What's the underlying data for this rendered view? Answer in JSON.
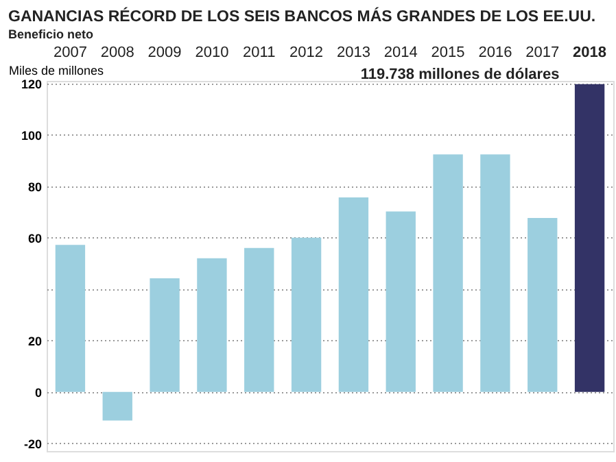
{
  "chart_data": {
    "type": "bar",
    "title": "GANANCIAS RÉCORD DE LOS SEIS BANCOS MÁS GRANDES DE LOS EE.UU.",
    "subtitle": "Beneficio neto",
    "ylabel": "Miles de millones",
    "categories": [
      "2007",
      "2008",
      "2009",
      "2010",
      "2011",
      "2012",
      "2013",
      "2014",
      "2015",
      "2016",
      "2017",
      "2018"
    ],
    "values": [
      57.2,
      -11.1,
      44.2,
      52,
      56,
      60,
      75.7,
      70.2,
      92.4,
      92.4,
      67.7,
      119.738
    ],
    "colors": [
      "#9ccfdf",
      "#9ccfdf",
      "#9ccfdf",
      "#9ccfdf",
      "#9ccfdf",
      "#9ccfdf",
      "#9ccfdf",
      "#9ccfdf",
      "#9ccfdf",
      "#9ccfdf",
      "#9ccfdf",
      "#333366"
    ],
    "ylim": [
      -23,
      121
    ],
    "yticks": [
      120,
      100,
      80,
      60,
      {
        "value": 40,
        "label": null
      },
      20,
      0,
      -20
    ],
    "grid": "y",
    "annotations": [
      {
        "text": "119.738 millones de dólares",
        "x": "2018",
        "y": 119.738
      }
    ]
  }
}
